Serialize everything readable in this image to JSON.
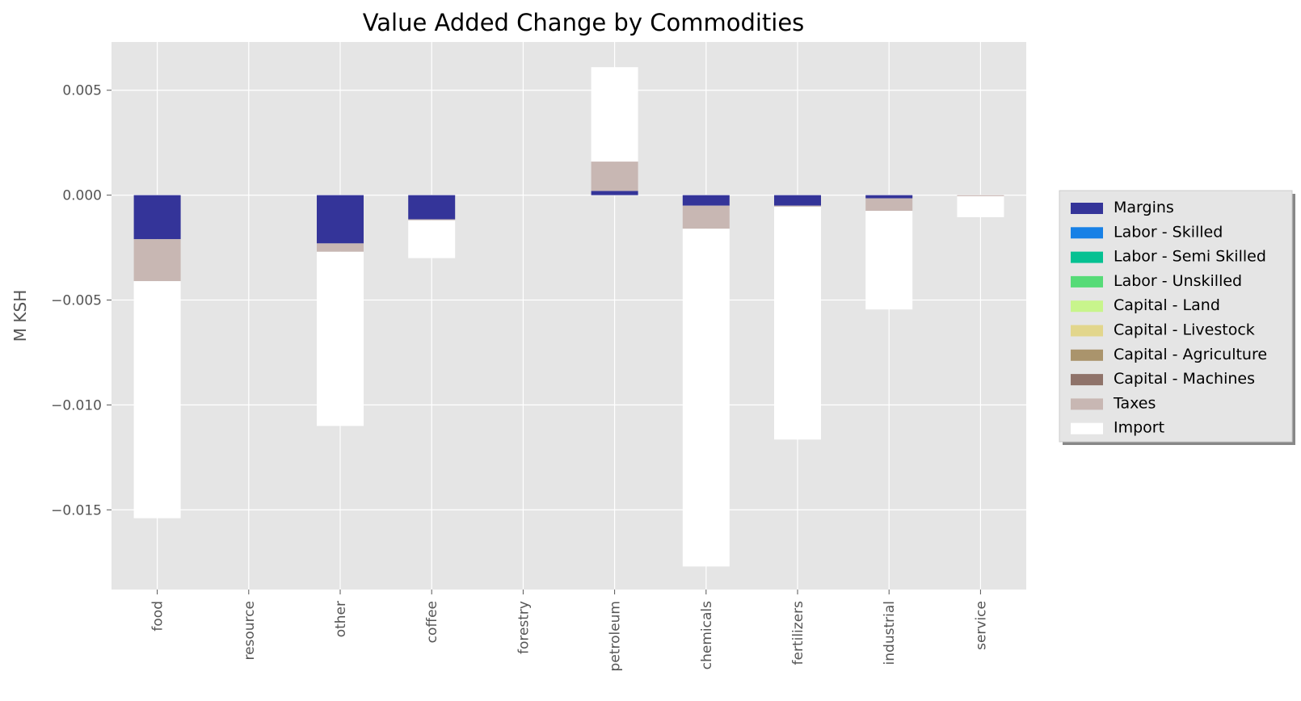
{
  "chart_data": {
    "type": "bar",
    "stacked": true,
    "title": "Value Added Change by Commodities",
    "xlabel": "",
    "ylabel": "M KSH",
    "categories": [
      "food",
      "resource",
      "other",
      "coffee",
      "forestry",
      "petroleum",
      "chemicals",
      "fertilizers",
      "industrial",
      "service"
    ],
    "ylim": [
      -0.0188,
      0.0073
    ],
    "yticks": [
      0.005,
      0.0,
      -0.005,
      -0.01,
      -0.015
    ],
    "ytick_labels": [
      "0.005",
      "0.000",
      "−0.005",
      "−0.010",
      "−0.015"
    ],
    "grid": true,
    "legend_position": "right",
    "series": [
      {
        "name": "Margins",
        "color": "#343499",
        "values": [
          -0.0021,
          0,
          -0.0023,
          -0.00115,
          0,
          0.0002,
          -0.0005,
          -0.0005,
          -0.00015,
          0
        ]
      },
      {
        "name": "Labor - Skilled",
        "color": "#1780E6",
        "values": [
          0,
          0,
          0,
          0,
          0,
          0,
          0,
          0,
          0,
          0
        ]
      },
      {
        "name": "Labor - Semi Skilled",
        "color": "#05C192",
        "values": [
          0,
          0,
          0,
          0,
          0,
          0,
          0,
          0,
          0,
          0
        ]
      },
      {
        "name": "Labor - Unskilled",
        "color": "#56DB77",
        "values": [
          0,
          0,
          0,
          0,
          0,
          0,
          0,
          0,
          0,
          0
        ]
      },
      {
        "name": "Capital - Land",
        "color": "#C8F58C",
        "values": [
          0,
          0,
          0,
          0,
          0,
          0,
          0,
          0,
          0,
          0
        ]
      },
      {
        "name": "Capital - Livestock",
        "color": "#E2D68C",
        "values": [
          0,
          0,
          0,
          0,
          0,
          0,
          0,
          0,
          0,
          0
        ]
      },
      {
        "name": "Capital - Agriculture",
        "color": "#AA946C",
        "values": [
          0,
          0,
          0,
          0,
          0,
          0,
          0,
          0,
          0,
          0
        ]
      },
      {
        "name": "Capital - Machines",
        "color": "#8F736A",
        "values": [
          0,
          0,
          0,
          0,
          0,
          0,
          0,
          0,
          0,
          0
        ]
      },
      {
        "name": "Taxes",
        "color": "#C8B7B3",
        "values": [
          -0.002,
          0,
          -0.0004,
          -5e-05,
          0,
          0.0014,
          -0.0011,
          -5e-05,
          -0.0006,
          -5e-05
        ]
      },
      {
        "name": "Import",
        "color": "#FFFFFF",
        "values": [
          -0.0113,
          0,
          -0.0083,
          -0.0018,
          0,
          0.0045,
          -0.0161,
          -0.0111,
          -0.0047,
          -0.001
        ]
      }
    ]
  }
}
